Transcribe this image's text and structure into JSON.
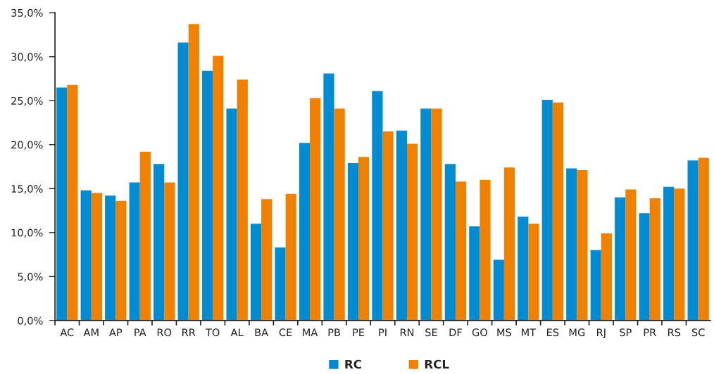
{
  "chart_data": {
    "type": "bar",
    "categories": [
      "AC",
      "AM",
      "AP",
      "PA",
      "RO",
      "RR",
      "TO",
      "AL",
      "BA",
      "CE",
      "MA",
      "PB",
      "PE",
      "PI",
      "RN",
      "SE",
      "DF",
      "GO",
      "MS",
      "MT",
      "ES",
      "MG",
      "RJ",
      "SP",
      "PR",
      "RS",
      "SC"
    ],
    "series": [
      {
        "name": "RC",
        "color": "#008bd2",
        "values": [
          26.5,
          14.8,
          14.2,
          15.7,
          17.8,
          31.6,
          28.4,
          24.1,
          11.0,
          8.3,
          20.2,
          28.1,
          17.9,
          26.1,
          21.6,
          24.1,
          17.8,
          10.7,
          6.9,
          11.8,
          25.1,
          17.3,
          8.0,
          14.0,
          12.2,
          15.2,
          18.2
        ]
      },
      {
        "name": "RCL",
        "color": "#ef8000",
        "values": [
          26.8,
          14.5,
          13.6,
          19.2,
          15.7,
          33.7,
          30.1,
          27.4,
          13.8,
          14.4,
          25.3,
          24.1,
          18.6,
          21.5,
          20.1,
          24.1,
          15.8,
          16.0,
          17.4,
          11.0,
          24.8,
          17.1,
          9.9,
          14.9,
          13.9,
          15.0,
          18.5
        ]
      }
    ],
    "ylim": [
      0,
      35
    ],
    "yticks": [
      {
        "value": 0,
        "label": "0,0%"
      },
      {
        "value": 5,
        "label": "5,0%"
      },
      {
        "value": 10,
        "label": "10,0%"
      },
      {
        "value": 15,
        "label": "15,0%"
      },
      {
        "value": 20,
        "label": "20,0%"
      },
      {
        "value": 25,
        "label": "25,0%"
      },
      {
        "value": 30,
        "label": "30,0%"
      },
      {
        "value": 35,
        "label": "35,0%"
      }
    ],
    "grid": false,
    "legend": "bottom"
  }
}
